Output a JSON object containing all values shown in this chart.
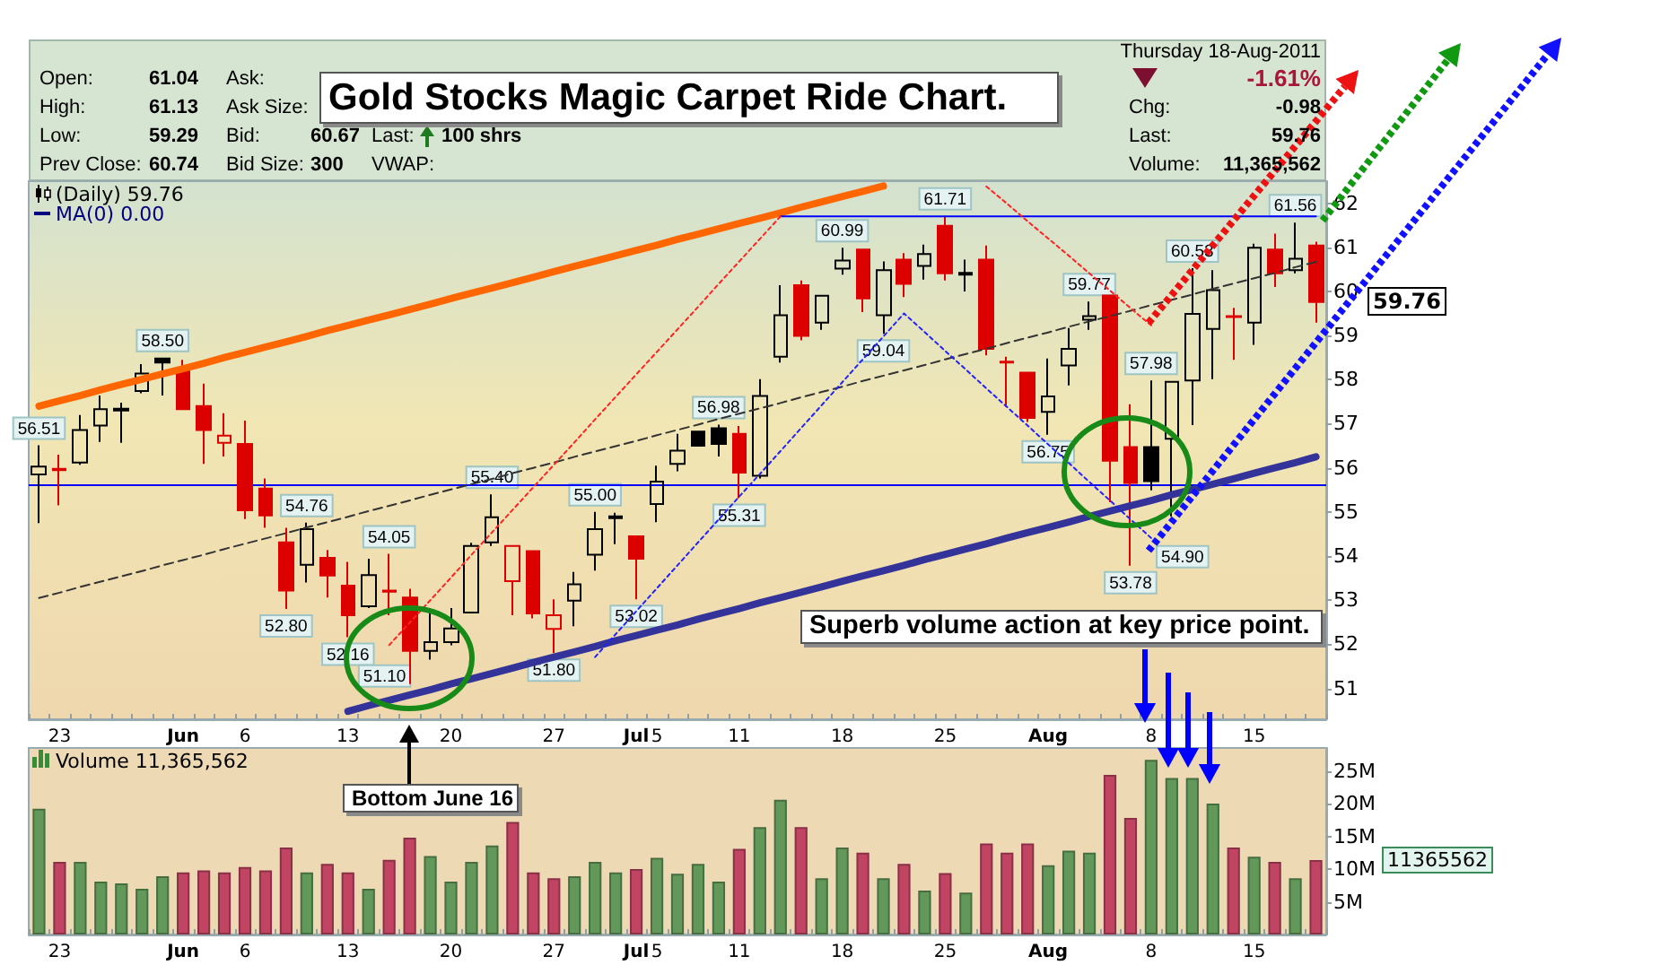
{
  "chart_data": [
    {
      "type": "candlestick",
      "title": "Gold Stocks Magic Carpet Ride Chart.",
      "categories": [
        null,
        "23",
        null,
        null,
        null,
        null,
        null,
        "Jun",
        null,
        null,
        "6",
        null,
        null,
        null,
        null,
        "13",
        null,
        null,
        null,
        null,
        "20",
        null,
        null,
        null,
        null,
        "27",
        null,
        null,
        null,
        "Jul",
        "5",
        null,
        null,
        null,
        "11",
        null,
        null,
        null,
        null,
        "18",
        null,
        null,
        null,
        null,
        "25",
        null,
        null,
        null,
        null,
        "Aug",
        null,
        null,
        null,
        null,
        "8",
        null,
        null,
        null,
        null,
        "15",
        null,
        null,
        null
      ],
      "ylim": [
        50.3,
        62.5
      ],
      "yticks": [
        51,
        52,
        53,
        54,
        55,
        56,
        57,
        58,
        59,
        60,
        61,
        62
      ],
      "series": [
        {
          "type": "candlestick",
          "ohlc": [
            [
              55.85,
              56.51,
              54.75,
              56.03
            ],
            [
              55.98,
              56.3,
              55.15,
              55.95
            ],
            [
              56.12,
              57.2,
              56.07,
              56.86
            ],
            [
              56.96,
              57.64,
              56.59,
              57.33
            ],
            [
              57.3,
              57.48,
              56.57,
              57.34
            ],
            [
              57.74,
              58.35,
              57.69,
              58.14
            ],
            [
              58.48,
              58.5,
              57.64,
              58.39
            ],
            [
              58.21,
              58.45,
              57.31,
              57.33
            ],
            [
              57.4,
              57.91,
              56.09,
              56.86
            ],
            [
              56.57,
              57.24,
              56.26,
              56.73
            ],
            [
              56.54,
              57.07,
              54.84,
              55.04
            ],
            [
              55.53,
              55.76,
              54.64,
              54.92
            ],
            [
              54.31,
              54.64,
              52.8,
              53.22
            ],
            [
              53.8,
              54.76,
              53.4,
              54.61
            ],
            [
              53.96,
              54.14,
              53.06,
              53.56
            ],
            [
              53.33,
              53.87,
              52.16,
              52.66
            ],
            [
              52.86,
              53.94,
              52.82,
              53.57
            ],
            [
              53.22,
              54.05,
              52.66,
              53.19
            ],
            [
              53.06,
              53.26,
              51.1,
              51.85
            ],
            [
              51.85,
              52.82,
              51.65,
              52.05
            ],
            [
              52.05,
              52.82,
              51.98,
              52.36
            ],
            [
              52.72,
              54.3,
              52.7,
              54.23
            ],
            [
              54.31,
              55.4,
              54.23,
              54.88
            ],
            [
              53.43,
              54.25,
              52.66,
              54.23
            ],
            [
              54.11,
              54.13,
              52.59,
              52.7
            ],
            [
              52.35,
              53.02,
              51.8,
              52.66
            ],
            [
              52.99,
              53.64,
              52.41,
              53.36
            ],
            [
              54.03,
              55.0,
              53.67,
              54.61
            ],
            [
              54.86,
              54.98,
              54.27,
              54.9
            ],
            [
              54.45,
              54.47,
              53.02,
              53.94
            ],
            [
              55.18,
              56.05,
              54.77,
              55.69
            ],
            [
              56.09,
              56.77,
              55.92,
              56.39
            ],
            [
              56.82,
              56.84,
              56.48,
              56.5
            ],
            [
              56.9,
              56.98,
              56.26,
              56.54
            ],
            [
              56.77,
              56.95,
              55.31,
              55.89
            ],
            [
              55.82,
              58.01,
              55.76,
              57.63
            ],
            [
              58.52,
              60.14,
              58.39,
              59.46
            ],
            [
              60.14,
              60.25,
              58.89,
              58.99
            ],
            [
              59.29,
              59.92,
              59.13,
              59.9
            ],
            [
              60.52,
              60.99,
              60.38,
              60.7
            ],
            [
              60.95,
              60.97,
              59.53,
              59.84
            ],
            [
              59.46,
              60.68,
              59.04,
              60.48
            ],
            [
              60.72,
              60.87,
              59.87,
              60.17
            ],
            [
              60.58,
              61.06,
              60.27,
              60.85
            ],
            [
              61.49,
              61.71,
              60.25,
              60.41
            ],
            [
              60.38,
              60.72,
              60.0,
              60.42
            ],
            [
              60.72,
              61.04,
              58.55,
              58.7
            ],
            [
              58.41,
              58.52,
              57.38,
              58.39
            ],
            [
              58.16,
              58.18,
              57.04,
              57.13
            ],
            [
              57.27,
              58.48,
              56.75,
              57.62
            ],
            [
              58.32,
              59.17,
              57.87,
              58.7
            ],
            [
              59.36,
              59.77,
              59.13,
              59.44
            ],
            [
              59.91,
              59.93,
              55.22,
              56.16
            ],
            [
              56.47,
              57.44,
              53.78,
              55.66
            ],
            [
              56.47,
              57.98,
              55.49,
              55.7
            ],
            [
              56.66,
              57.97,
              54.9,
              57.95
            ],
            [
              57.98,
              60.53,
              56.97,
              59.49
            ],
            [
              59.15,
              60.48,
              58.01,
              60.03
            ],
            [
              59.44,
              59.63,
              58.45,
              59.42
            ],
            [
              59.29,
              61.08,
              58.79,
              60.99
            ],
            [
              60.95,
              61.31,
              60.1,
              60.41
            ],
            [
              60.48,
              61.56,
              60.41,
              60.74
            ],
            [
              61.04,
              61.13,
              59.29,
              59.76
            ]
          ],
          "colors": [
            "#000000",
            "#dd0000",
            "#000000",
            "#000000",
            "#000000",
            "#000000",
            "#000000",
            "#dd0000",
            "#dd0000",
            "#dd0000",
            "#dd0000",
            "#dd0000",
            "#dd0000",
            "#000000",
            "#dd0000",
            "#dd0000",
            "#000000",
            "#dd0000",
            "#dd0000",
            "#000000",
            "#000000",
            "#000000",
            "#000000",
            "#dd0000",
            "#dd0000",
            "#dd0000",
            "#000000",
            "#000000",
            "#000000",
            "#dd0000",
            "#000000",
            "#000000",
            "#000000",
            "#000000",
            "#dd0000",
            "#000000",
            "#000000",
            "#dd0000",
            "#000000",
            "#000000",
            "#dd0000",
            "#000000",
            "#dd0000",
            "#000000",
            "#dd0000",
            "#000000",
            "#dd0000",
            "#dd0000",
            "#dd0000",
            "#000000",
            "#000000",
            "#000000",
            "#dd0000",
            "#dd0000",
            "#000000",
            "#000000",
            "#000000",
            "#000000",
            "#dd0000",
            "#000000",
            "#dd0000",
            "#000000",
            "#dd0000"
          ],
          "value_labels": [
            "56.51",
            null,
            null,
            null,
            null,
            null,
            "58.50",
            null,
            null,
            null,
            null,
            null,
            "52.80",
            "54.76",
            null,
            "52.16",
            null,
            "54.05",
            "51.10",
            null,
            null,
            null,
            "55.40",
            null,
            null,
            "51.80",
            null,
            "55.00",
            null,
            "53.02",
            null,
            null,
            null,
            "56.98",
            "55.31",
            null,
            null,
            null,
            null,
            "60.99",
            null,
            "59.04",
            null,
            null,
            "61.71",
            null,
            null,
            null,
            null,
            "56.75",
            null,
            "59.77",
            null,
            "53.78",
            "57.98",
            "54.90",
            "60.53",
            null,
            null,
            null,
            null,
            "61.56",
            null
          ]
        },
        {
          "type": "line",
          "color": "#ff6600",
          "line_style": "solid",
          "values": [
            57.4,
            57.52,
            57.64,
            57.77,
            57.89,
            58.01,
            58.13,
            58.25,
            58.37,
            58.5,
            58.62,
            58.74,
            58.86,
            58.98,
            59.11,
            59.23,
            59.35,
            59.47,
            59.59,
            59.71,
            59.84,
            59.96,
            60.08,
            60.2,
            60.32,
            60.45,
            60.57,
            60.69,
            60.81,
            60.93,
            61.05,
            61.18,
            61.3,
            61.42,
            61.54,
            61.66,
            61.78,
            61.91,
            62.03,
            62.15,
            62.27,
            62.39,
            null,
            null,
            null,
            null,
            null,
            null,
            null,
            null,
            null,
            null,
            null,
            null,
            null,
            null,
            null,
            null,
            null,
            null,
            null,
            null,
            null
          ]
        },
        {
          "type": "line",
          "color": "#333399",
          "line_style": "solid",
          "values": [
            null,
            null,
            null,
            null,
            null,
            null,
            null,
            null,
            null,
            null,
            null,
            null,
            null,
            null,
            null,
            50.48,
            50.61,
            50.73,
            50.85,
            50.97,
            51.1,
            51.22,
            51.34,
            51.46,
            51.59,
            51.71,
            51.83,
            51.95,
            52.08,
            52.2,
            52.32,
            52.44,
            52.57,
            52.69,
            52.81,
            52.94,
            53.06,
            53.18,
            53.3,
            53.43,
            53.55,
            53.67,
            53.79,
            53.92,
            54.04,
            54.16,
            54.28,
            54.41,
            54.53,
            54.65,
            54.77,
            54.9,
            55.02,
            55.14,
            55.26,
            55.39,
            55.51,
            55.63,
            55.75,
            55.88,
            56.0,
            56.12,
            56.25
          ]
        },
        {
          "type": "line",
          "color": "#333333",
          "line_style": "dashed",
          "values": [
            53.05,
            53.17,
            53.3,
            53.42,
            53.54,
            53.66,
            53.79,
            53.91,
            54.03,
            54.16,
            54.28,
            54.4,
            54.52,
            54.65,
            54.77,
            54.89,
            55.02,
            55.14,
            55.26,
            55.39,
            55.51,
            55.63,
            55.75,
            55.88,
            56.0,
            56.12,
            56.25,
            56.37,
            56.49,
            56.61,
            56.74,
            56.86,
            56.98,
            57.11,
            57.23,
            57.35,
            57.47,
            57.6,
            57.72,
            57.84,
            57.97,
            58.09,
            58.21,
            58.33,
            58.46,
            58.58,
            58.7,
            58.83,
            58.95,
            59.07,
            59.2,
            59.32,
            59.44,
            59.56,
            59.69,
            59.81,
            59.93,
            60.06,
            60.18,
            60.3,
            60.42,
            60.55,
            60.67
          ]
        },
        {
          "type": "line",
          "color": "#0000ff",
          "line_style": "solid",
          "values": [
            null,
            null,
            null,
            null,
            null,
            null,
            null,
            null,
            null,
            null,
            null,
            null,
            null,
            null,
            null,
            null,
            null,
            null,
            null,
            null,
            null,
            null,
            null,
            null,
            null,
            null,
            null,
            null,
            null,
            null,
            null,
            null,
            null,
            null,
            null,
            null,
            61.7,
            61.7,
            61.7,
            61.7,
            61.7,
            61.7,
            61.7,
            61.7,
            61.7,
            61.7,
            61.7,
            61.7,
            61.7,
            61.7,
            61.7,
            61.7,
            61.7,
            61.7,
            61.7,
            61.7,
            61.7,
            61.7,
            61.7,
            61.7,
            61.7,
            61.7,
            61.7
          ]
        },
        {
          "type": "line",
          "color": "#ff2222",
          "line_style": "dotted",
          "values": [
            null,
            null,
            null,
            null,
            null,
            null,
            null,
            null,
            null,
            null,
            null,
            null,
            null,
            null,
            null,
            null,
            null,
            51.98,
            52.49,
            53.0,
            53.51,
            54.03,
            54.54,
            55.05,
            55.56,
            56.07,
            56.58,
            57.1,
            57.61,
            58.12,
            58.63,
            59.14,
            59.65,
            60.17,
            60.68,
            61.19,
            61.7,
            null,
            null,
            null,
            null,
            null,
            null,
            null,
            null,
            null,
            null,
            null,
            null,
            null,
            null,
            null,
            null,
            null,
            null,
            null,
            null,
            null,
            null,
            null,
            null,
            null,
            null
          ]
        },
        {
          "type": "line",
          "color": "#ff2222",
          "line_style": "dotted",
          "values": [
            null,
            null,
            null,
            null,
            null,
            null,
            null,
            null,
            null,
            null,
            null,
            null,
            null,
            null,
            null,
            null,
            null,
            null,
            null,
            null,
            null,
            null,
            null,
            null,
            null,
            null,
            null,
            null,
            null,
            null,
            null,
            null,
            null,
            null,
            null,
            null,
            null,
            null,
            null,
            null,
            null,
            null,
            null,
            null,
            null,
            null,
            62.38,
            61.99,
            61.59,
            61.2,
            60.81,
            60.41,
            60.02,
            59.62,
            59.23,
            null,
            null,
            null,
            null,
            null,
            null,
            null,
            null
          ]
        },
        {
          "type": "line",
          "color": "#2222ff",
          "line_style": "dotted",
          "values": [
            null,
            null,
            null,
            null,
            null,
            null,
            null,
            null,
            null,
            null,
            null,
            null,
            null,
            null,
            null,
            null,
            null,
            null,
            null,
            null,
            null,
            null,
            null,
            null,
            null,
            null,
            null,
            51.71,
            52.23,
            52.75,
            53.27,
            53.79,
            54.31,
            54.83,
            55.35,
            55.86,
            56.38,
            56.9,
            57.42,
            57.94,
            58.46,
            58.98,
            59.5,
            59.08,
            58.65,
            58.23,
            57.8,
            57.38,
            56.96,
            56.53,
            56.11,
            55.68,
            55.26,
            54.83,
            54.41,
            null,
            null,
            null,
            null,
            null,
            null,
            null,
            null
          ]
        }
      ],
      "ref_lines": [
        {
          "axis": "y",
          "value": 55.6,
          "color": "#0000ff"
        }
      ],
      "annotations": [
        "Open:",
        "61.04",
        "High:",
        "61.13",
        "Low:",
        "59.29",
        "Prev Close:",
        "60.74",
        "Ask:",
        "Ask Size:",
        "Bid:",
        "60.67",
        "Bid Size:",
        "300",
        "Last:",
        "100 shrs",
        "VWAP:",
        "Thursday 18-Aug-2011",
        "-1.61%",
        "Chg:",
        "-0.98",
        "Last:",
        "59.76",
        "Volume:",
        "11,365,562",
        "(Daily) 59.76",
        "MA(0) 0.00",
        "Superb volume action at key price point.",
        "Bottom June 16",
        "59.76"
      ]
    },
    {
      "type": "bar",
      "title": "Volume 11,365,562",
      "categories": [
        null,
        "23",
        null,
        null,
        null,
        null,
        null,
        "Jun",
        null,
        null,
        "6",
        null,
        null,
        null,
        null,
        "13",
        null,
        null,
        null,
        null,
        "20",
        null,
        null,
        null,
        null,
        "27",
        null,
        null,
        null,
        "Jul",
        "5",
        null,
        null,
        null,
        "11",
        null,
        null,
        null,
        null,
        "18",
        null,
        null,
        null,
        null,
        "25",
        null,
        null,
        null,
        null,
        "Aug",
        null,
        null,
        null,
        null,
        "8",
        null,
        null,
        null,
        null,
        "15",
        null,
        null,
        null
      ],
      "values": [
        19.2,
        11.1,
        11.1,
        8.1,
        7.8,
        7.0,
        8.9,
        9.5,
        9.8,
        9.5,
        10.3,
        9.8,
        13.3,
        9.5,
        10.8,
        9.5,
        7.0,
        11.4,
        14.8,
        12.0,
        8.1,
        11.1,
        13.6,
        17.2,
        9.5,
        8.6,
        8.9,
        11.1,
        9.5,
        10.0,
        11.7,
        9.3,
        10.8,
        8.1,
        13.1,
        16.4,
        20.6,
        16.4,
        8.6,
        13.3,
        12.5,
        8.6,
        10.8,
        6.7,
        9.4,
        6.4,
        13.9,
        12.5,
        13.9,
        10.6,
        12.8,
        12.5,
        24.4,
        17.8,
        26.7,
        23.9,
        23.9,
        20.0,
        13.3,
        11.9,
        11.1,
        8.6,
        11.365562
      ],
      "colors": [
        "#62995a",
        "#c14463",
        "#62995a",
        "#62995a",
        "#62995a",
        "#62995a",
        "#62995a",
        "#c14463",
        "#c14463",
        "#c14463",
        "#c14463",
        "#c14463",
        "#c14463",
        "#62995a",
        "#c14463",
        "#c14463",
        "#62995a",
        "#c14463",
        "#c14463",
        "#62995a",
        "#62995a",
        "#62995a",
        "#62995a",
        "#c14463",
        "#c14463",
        "#c14463",
        "#62995a",
        "#62995a",
        "#62995a",
        "#c14463",
        "#62995a",
        "#62995a",
        "#62995a",
        "#62995a",
        "#c14463",
        "#62995a",
        "#62995a",
        "#c14463",
        "#62995a",
        "#62995a",
        "#c14463",
        "#62995a",
        "#c14463",
        "#62995a",
        "#c14463",
        "#62995a",
        "#c14463",
        "#c14463",
        "#c14463",
        "#62995a",
        "#62995a",
        "#62995a",
        "#c14463",
        "#c14463",
        "#62995a",
        "#62995a",
        "#62995a",
        "#62995a",
        "#c14463",
        "#62995a",
        "#c14463",
        "#62995a",
        "#c14463"
      ],
      "ylim": [
        0,
        28.5
      ],
      "yticks": [
        {
          "value": 5,
          "label": "5M"
        },
        {
          "value": 10,
          "label": "10M"
        },
        {
          "value": 15,
          "label": "15M"
        },
        {
          "value": 20,
          "label": "20M"
        },
        {
          "value": 25,
          "label": "25M"
        }
      ],
      "annotations": [
        "11365562"
      ]
    }
  ]
}
